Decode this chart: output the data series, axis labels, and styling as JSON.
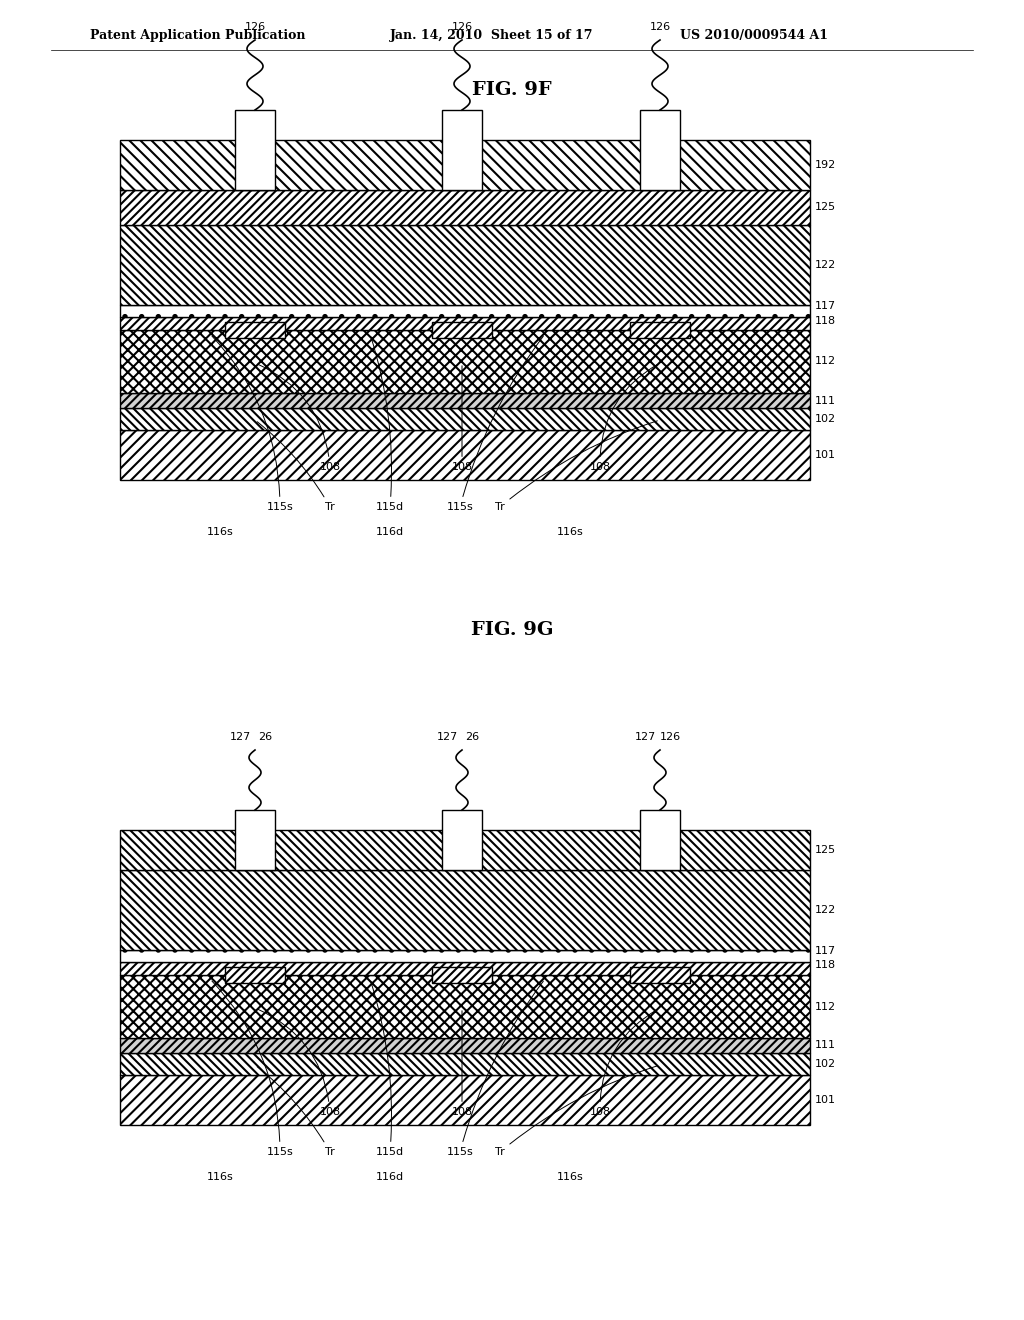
{
  "title_top": "Patent Application Publication",
  "title_date": "Jan. 14, 2010  Sheet 15 of 17",
  "title_patent": "US 2010/0009544 A1",
  "fig1_title": "FIG. 9F",
  "fig2_title": "FIG. 9G",
  "background": "#ffffff",
  "line_color": "#000000",
  "hatch_color": "#000000",
  "fig1_labels_right": [
    "192",
    "125",
    "122",
    "117",
    "118",
    "112",
    "111",
    "102",
    "101"
  ],
  "fig2_labels_right": [
    "125",
    "122",
    "117",
    "118",
    "112",
    "111",
    "102",
    "101"
  ],
  "fig1_top_labels": [
    "126",
    "126",
    "126"
  ],
  "fig2_top_labels_127": [
    "127",
    "127",
    "127"
  ],
  "fig2_top_labels_26": [
    "26",
    "26"
  ],
  "fig2_top_label_126": "126",
  "bottom_labels_fig1": [
    "108",
    "108",
    "108",
    "115s",
    "Tr",
    "115d",
    "115s",
    "Tr",
    "116s",
    "116d",
    "116s"
  ],
  "bottom_labels_fig2": [
    "108",
    "108",
    "108",
    "115s",
    "Tr",
    "115d",
    "115s",
    "Tr",
    "116s",
    "116d",
    "116s"
  ]
}
